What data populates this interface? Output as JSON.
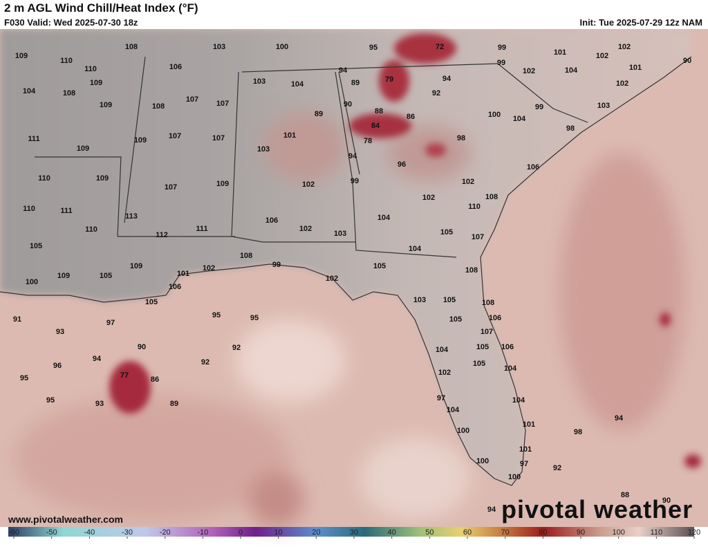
{
  "header": {
    "title": "2 m AGL Wind Chill/Heat Index (°F)",
    "valid": "F030 Valid: Wed 2025-07-30 18z",
    "init": "Init: Tue 2025-07-29 12z NAM"
  },
  "map": {
    "labels": [
      109,
      110,
      108,
      110,
      106,
      103,
      100,
      95,
      72,
      99,
      101,
      102,
      102,
      90,
      101,
      104,
      108,
      109,
      103,
      104,
      94,
      89,
      79,
      92,
      94,
      99,
      102,
      104,
      102,
      109,
      108,
      107,
      107,
      90,
      88,
      86,
      100,
      99,
      103,
      111,
      109,
      107,
      107,
      89,
      101,
      84,
      78,
      98,
      104,
      98,
      109,
      103,
      94,
      96,
      106,
      110,
      109,
      107,
      109,
      102,
      99,
      102,
      108,
      110,
      111,
      113,
      102,
      110,
      110,
      112,
      111,
      106,
      102,
      103,
      104,
      105,
      107,
      105,
      108,
      99,
      104,
      109,
      101,
      102,
      105,
      108,
      100,
      109,
      105,
      106,
      102,
      105,
      103,
      105,
      108,
      91,
      95,
      95,
      97,
      105,
      106,
      93,
      107,
      90,
      92,
      105,
      106,
      94,
      92,
      104,
      105,
      104,
      96,
      77,
      86,
      102,
      95,
      95,
      93,
      89,
      97,
      104,
      104,
      101,
      94,
      98,
      100,
      101,
      97,
      100,
      92,
      100,
      88,
      94,
      90
    ]
  },
  "footer": {
    "website": "www.pivotalweather.com",
    "logo": "pivotal weather"
  },
  "colorbar": {
    "ticks": [
      -60,
      -50,
      -40,
      -30,
      -20,
      -10,
      0,
      10,
      20,
      30,
      40,
      50,
      60,
      70,
      80,
      90,
      100,
      110,
      120
    ]
  }
}
